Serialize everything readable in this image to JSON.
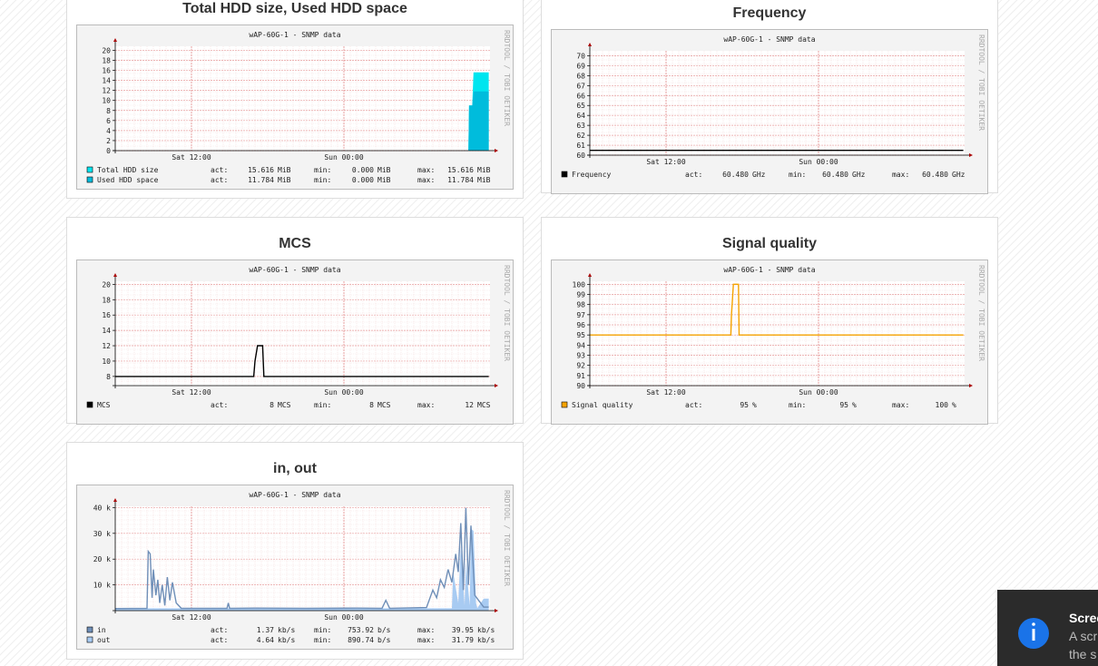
{
  "stat_labels": {
    "act": "act:",
    "min": "min:",
    "max": "max:"
  },
  "panels": [
    {
      "title": "Total HDD size, Used HDD space",
      "chart": {
        "title": "wAP-60G-1 - SNMP data",
        "credit": "RRDTOOL / TOBI OETIKER",
        "xlim": [
          0,
          29.5
        ],
        "xticks": [
          {
            "value": 6,
            "label": "Sat 12:00"
          },
          {
            "value": 18,
            "label": "Sun 00:00"
          }
        ],
        "ylim": [
          0,
          20.8
        ],
        "yticks": [
          0,
          2,
          4,
          6,
          8,
          10,
          12,
          14,
          16,
          18,
          20
        ],
        "series": [
          {
            "name": "Total HDD size",
            "type": "area",
            "color": "#00e5ef",
            "x": [
              0,
              27.8,
              27.85,
              28.1,
              28.2,
              29.4
            ],
            "values": [
              0,
              0,
              9,
              9,
              15.616,
              15.616
            ],
            "stats": {
              "act": [
                "15.616",
                "MiB"
              ],
              "min": [
                "0.000",
                "MiB"
              ],
              "max": [
                "15.616",
                "MiB"
              ]
            }
          },
          {
            "name": "Used HDD space",
            "type": "area",
            "color": "#00bcdc",
            "x": [
              0,
              27.8,
              27.85,
              28.1,
              28.2,
              29.4
            ],
            "values": [
              0,
              0,
              9,
              9,
              11.784,
              11.784
            ],
            "stats": {
              "act": [
                "11.784",
                "MiB"
              ],
              "min": [
                "0.000",
                "MiB"
              ],
              "max": [
                "11.784",
                "MiB"
              ]
            }
          }
        ]
      }
    },
    {
      "title": "Frequency",
      "chart": {
        "title": "wAP-60G-1 - SNMP data",
        "credit": "RRDTOOL / TOBI OETIKER",
        "xlim": [
          0,
          29.5
        ],
        "xticks": [
          {
            "value": 6,
            "label": "Sat 12:00"
          },
          {
            "value": 18,
            "label": "Sun 00:00"
          }
        ],
        "ylim": [
          60,
          70.5
        ],
        "yticks": [
          60,
          61,
          62,
          63,
          64,
          65,
          66,
          67,
          68,
          69,
          70
        ],
        "series": [
          {
            "name": "Frequency",
            "type": "line",
            "color": "#000000",
            "x": [
              0,
              29.4
            ],
            "values": [
              60.48,
              60.48
            ],
            "stats": {
              "act": [
                "60.480",
                "GHz"
              ],
              "min": [
                "60.480",
                "GHz"
              ],
              "max": [
                "60.480",
                "GHz"
              ]
            }
          }
        ]
      }
    },
    {
      "title": "MCS",
      "chart": {
        "title": "wAP-60G-1 - SNMP data",
        "credit": "RRDTOOL / TOBI OETIKER",
        "xlim": [
          0,
          29.5
        ],
        "xticks": [
          {
            "value": 6,
            "label": "Sat 12:00"
          },
          {
            "value": 18,
            "label": "Sun 00:00"
          }
        ],
        "ylim": [
          6.8,
          20.4
        ],
        "yticks": [
          8,
          10,
          12,
          14,
          16,
          18,
          20
        ],
        "series": [
          {
            "name": "MCS",
            "type": "line",
            "color": "#000000",
            "x": [
              0,
              10.9,
              11.0,
              11.2,
              11.6,
              11.7,
              29.4
            ],
            "values": [
              8,
              8,
              10,
              12,
              12,
              8,
              8
            ],
            "stats": {
              "act": [
                "8",
                "MCS"
              ],
              "min": [
                "8",
                "MCS"
              ],
              "max": [
                "12",
                "MCS"
              ]
            }
          }
        ]
      }
    },
    {
      "title": "Signal quality",
      "chart": {
        "title": "wAP-60G-1 - SNMP data",
        "credit": "RRDTOOL / TOBI OETIKER",
        "xlim": [
          0,
          29.5
        ],
        "xticks": [
          {
            "value": 6,
            "label": "Sat 12:00"
          },
          {
            "value": 18,
            "label": "Sun 00:00"
          }
        ],
        "ylim": [
          90,
          100.3
        ],
        "yticks": [
          90,
          91,
          92,
          93,
          94,
          95,
          96,
          97,
          98,
          99,
          100
        ],
        "series": [
          {
            "name": "Signal quality",
            "type": "line",
            "color": "#f5a300",
            "x": [
              0,
              11.1,
              11.15,
              11.3,
              11.7,
              11.75,
              29.4
            ],
            "values": [
              95,
              95,
              97,
              100,
              100,
              95,
              95
            ],
            "stats": {
              "act": [
                "95",
                "%"
              ],
              "min": [
                "95",
                "%"
              ],
              "max": [
                "100",
                "%"
              ]
            }
          }
        ]
      }
    },
    {
      "title": "in, out",
      "chart": {
        "title": "wAP-60G-1 - SNMP data",
        "credit": "RRDTOOL / TOBI OETIKER",
        "xlim": [
          0,
          29.5
        ],
        "xticks": [
          {
            "value": 6,
            "label": "Sat 12:00"
          },
          {
            "value": 18,
            "label": "Sun 00:00"
          }
        ],
        "ylim": [
          0,
          40500
        ],
        "yticks": [
          {
            "value": 10000,
            "label": "10 k"
          },
          {
            "value": 20000,
            "label": "20 k"
          },
          {
            "value": 30000,
            "label": "30 k"
          },
          {
            "value": 40000,
            "label": "40 k"
          }
        ],
        "series": [
          {
            "name": "out",
            "type": "area",
            "color": "#a8cbf2",
            "x": [
              0,
              26.5,
              26.6,
              27.0,
              27.2,
              27.5,
              27.6,
              27.9,
              28.0,
              28.2,
              28.4,
              28.5,
              29.0,
              29.4
            ],
            "values": [
              900,
              900,
              15000,
              3000,
              25000,
              2000,
              19000,
              2000,
              31790,
              31000,
              3000,
              1000,
              4640,
              4640
            ],
            "stats": {
              "act": [
                "4.64",
                "kb/s"
              ],
              "min": [
                "890.74",
                "b/s"
              ],
              "max": [
                "31.79",
                "kb/s"
              ]
            }
          },
          {
            "name": "in",
            "type": "line",
            "color": "#6f8fb8",
            "x": [
              0,
              2.5,
              2.6,
              2.75,
              2.9,
              3.0,
              3.2,
              3.35,
              3.5,
              3.7,
              3.9,
              4.1,
              4.3,
              4.5,
              4.8,
              5.2,
              8.8,
              8.9,
              9.0,
              11.0,
              15.0,
              19.0,
              21.0,
              21.3,
              21.6,
              24.5,
              25.0,
              25.3,
              25.6,
              25.9,
              26.2,
              26.5,
              26.8,
              27.0,
              27.2,
              27.4,
              27.6,
              27.8,
              28.0,
              28.3,
              29.0,
              29.4
            ],
            "values": [
              800,
              900,
              23000,
              22000,
              5000,
              16000,
              6000,
              12000,
              3000,
              10000,
              2000,
              13000,
              4000,
              11000,
              3000,
              900,
              900,
              3000,
              900,
              1000,
              900,
              1000,
              900,
              4000,
              900,
              1200,
              8000,
              5000,
              12000,
              9000,
              16000,
              11000,
              22000,
              15000,
              34000,
              8000,
              39950,
              10000,
              33000,
              6000,
              1370,
              1370
            ],
            "stats": {
              "act": [
                "1.37",
                "kb/s"
              ],
              "min": [
                "753.92",
                "b/s"
              ],
              "max": [
                "39.95",
                "kb/s"
              ]
            }
          }
        ]
      }
    }
  ],
  "toast": {
    "title": "Scree",
    "lines": [
      "A scr",
      "the s"
    ]
  }
}
